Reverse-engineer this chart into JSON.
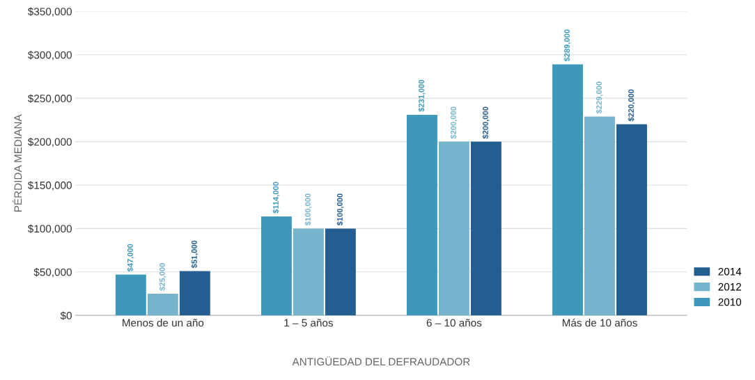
{
  "chart_data": {
    "type": "bar",
    "xlabel": "ANTIGÜEDAD DEL DEFRAUDADOR",
    "ylabel": "PÉRDIDA MEDIANA",
    "categories": [
      "Menos de un año",
      "1 – 5 años",
      "6 – 10 años",
      "Más de 10 años"
    ],
    "series": [
      {
        "name": "2010",
        "color": "#3d98ba",
        "values": [
          47000,
          114000,
          231000,
          289000
        ],
        "value_labels": [
          "$47,000",
          "$114,000",
          "$231,000",
          "$289,000"
        ]
      },
      {
        "name": "2012",
        "color": "#75b4cc",
        "values": [
          25000,
          100000,
          200000,
          229000
        ],
        "value_labels": [
          "$25,000",
          "$100,000",
          "$200,000",
          "$229,000"
        ]
      },
      {
        "name": "2014",
        "color": "#245d90",
        "values": [
          51000,
          100000,
          200000,
          220000
        ],
        "value_labels": [
          "$51,000",
          "$100,000",
          "$200,000",
          "$220,000"
        ]
      }
    ],
    "ylim": [
      0,
      350000
    ],
    "yticks": [
      {
        "value": 0,
        "label": "$0"
      },
      {
        "value": 50000,
        "label": "$50,000"
      },
      {
        "value": 100000,
        "label": "$100,000"
      },
      {
        "value": 150000,
        "label": "$150,000"
      },
      {
        "value": 200000,
        "label": "$200,000"
      },
      {
        "value": 250000,
        "label": "$250,000"
      },
      {
        "value": 300000,
        "label": "$300,000"
      },
      {
        "value": 350000,
        "label": "$350,000"
      }
    ],
    "grid": "y",
    "legend": "bottom right"
  }
}
